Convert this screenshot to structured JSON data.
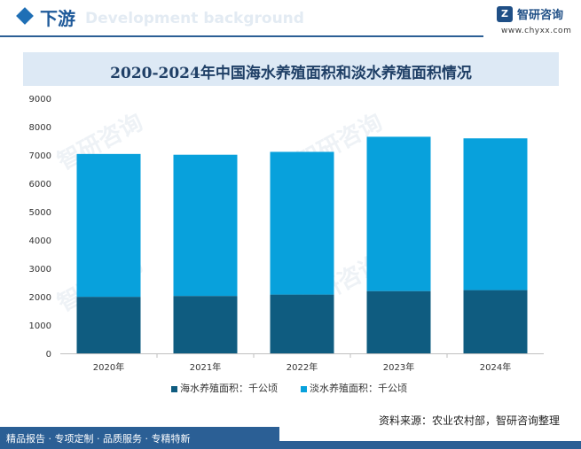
{
  "header": {
    "section_title": "下游",
    "ghost_text": "Development background",
    "brand": "智研咨询",
    "site": "www.chyxx.com",
    "logo_icon": "chyxx-logo-icon",
    "accent": "#2b5f95"
  },
  "chart_data": {
    "type": "bar",
    "stacked": true,
    "title": "2020-2024年中国海水养殖面积和淡水养殖面积情况",
    "categories": [
      "2020年",
      "2021年",
      "2022年",
      "2023年",
      "2024年"
    ],
    "series": [
      {
        "name": "海水养殖面积：千公顷",
        "values": [
          1996,
          2026,
          2075,
          2198,
          2232
        ],
        "color": "#0f5c80"
      },
      {
        "name": "淡水养殖面积：千公顷",
        "values": [
          5040,
          4983,
          5035,
          5445,
          5355
        ],
        "color": "#08a1dc"
      }
    ],
    "ylim": [
      0,
      9000
    ],
    "yticks": [
      0,
      1000,
      2000,
      3000,
      4000,
      5000,
      6000,
      7000,
      8000,
      9000
    ],
    "xlabel": "",
    "ylabel": "",
    "grid": false,
    "legend": "bottom"
  },
  "watermark": "智研咨询",
  "source": "资料来源：农业农村部，智研咨询整理",
  "footer": "精品报告 · 专项定制 · 品质服务 · 专精特新"
}
